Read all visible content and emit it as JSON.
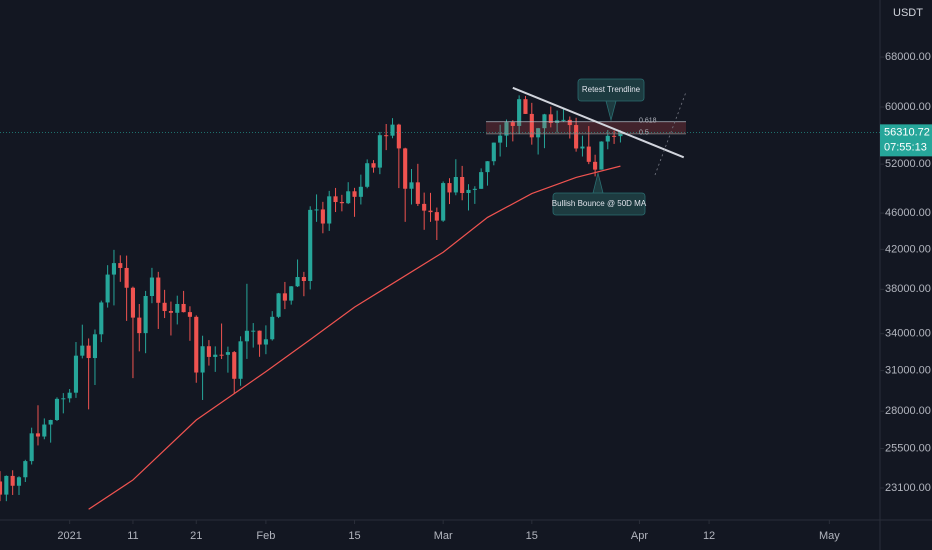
{
  "chart_data": {
    "type": "candlestick",
    "currency": "USDT",
    "countdown": "07:55:13",
    "up_color": "#26a69a",
    "down_color": "#ef5350",
    "log_scale": true,
    "grid": false,
    "x": [
      "2020-12-21",
      "2020-12-22",
      "2020-12-23",
      "2020-12-24",
      "2020-12-25",
      "2020-12-26",
      "2020-12-27",
      "2020-12-28",
      "2020-12-29",
      "2020-12-30",
      "2020-12-31",
      "2021-01-01",
      "2021-01-02",
      "2021-01-03",
      "2021-01-04",
      "2021-01-05",
      "2021-01-06",
      "2021-01-07",
      "2021-01-08",
      "2021-01-09",
      "2021-01-10",
      "2021-01-11",
      "2021-01-12",
      "2021-01-13",
      "2021-01-14",
      "2021-01-15",
      "2021-01-16",
      "2021-01-17",
      "2021-01-18",
      "2021-01-19",
      "2021-01-20",
      "2021-01-21",
      "2021-01-22",
      "2021-01-23",
      "2021-01-24",
      "2021-01-25",
      "2021-01-26",
      "2021-01-27",
      "2021-01-28",
      "2021-01-29",
      "2021-01-30",
      "2021-01-31",
      "2021-02-01",
      "2021-02-02",
      "2021-02-03",
      "2021-02-04",
      "2021-02-05",
      "2021-02-06",
      "2021-02-07",
      "2021-02-08",
      "2021-02-09",
      "2021-02-10",
      "2021-02-11",
      "2021-02-12",
      "2021-02-13",
      "2021-02-14",
      "2021-02-15",
      "2021-02-16",
      "2021-02-17",
      "2021-02-18",
      "2021-02-19",
      "2021-02-20",
      "2021-02-21",
      "2021-02-22",
      "2021-02-23",
      "2021-02-24",
      "2021-02-25",
      "2021-02-26",
      "2021-02-27",
      "2021-02-28",
      "2021-03-01",
      "2021-03-02",
      "2021-03-03",
      "2021-03-04",
      "2021-03-05",
      "2021-03-06",
      "2021-03-07",
      "2021-03-08",
      "2021-03-09",
      "2021-03-10",
      "2021-03-11",
      "2021-03-12",
      "2021-03-13",
      "2021-03-14",
      "2021-03-15",
      "2021-03-16",
      "2021-03-17",
      "2021-03-18",
      "2021-03-19",
      "2021-03-20",
      "2021-03-21",
      "2021-03-22",
      "2021-03-23",
      "2021-03-24",
      "2021-03-25",
      "2021-03-26",
      "2021-03-27",
      "2021-03-28",
      "2021-03-29"
    ],
    "open": [
      23480,
      22720,
      23810,
      23230,
      23730,
      24710,
      26490,
      26280,
      27080,
      27390,
      28880,
      28920,
      29330,
      32180,
      33000,
      31990,
      33950,
      36770,
      39430,
      40580,
      40090,
      38150,
      35400,
      34050,
      37370,
      39140,
      36740,
      35990,
      35830,
      36630,
      35890,
      35470,
      30850,
      32950,
      32080,
      32260,
      32250,
      32470,
      30370,
      33360,
      34250,
      34260,
      33090,
      33530,
      35470,
      37620,
      36940,
      38290,
      39190,
      38800,
      46370,
      46420,
      44810,
      47970,
      47290,
      47150,
      48580,
      47910,
      49130,
      52120,
      51550,
      55910,
      55840,
      57410,
      54090,
      48890,
      49680,
      47070,
      46280,
      46110,
      45140,
      49590,
      48440,
      50350,
      48370,
      48750,
      48880,
      50970,
      52380,
      54880,
      55850,
      57770,
      57220,
      61190,
      58970,
      55610,
      56900,
      58910,
      57650,
      58030,
      58100,
      57350,
      54080,
      54340,
      52300,
      51290,
      55030,
      55820,
      55780
    ],
    "high": [
      24100,
      23840,
      24150,
      23790,
      24790,
      26870,
      28420,
      27500,
      27410,
      28990,
      29300,
      29600,
      33300,
      34780,
      33600,
      34360,
      36940,
      40370,
      41950,
      41380,
      41350,
      38260,
      36630,
      37850,
      40100,
      39700,
      37950,
      36850,
      37400,
      37850,
      36420,
      35600,
      33830,
      33460,
      32940,
      34880,
      32920,
      32560,
      33780,
      38530,
      34920,
      34280,
      34720,
      35980,
      37660,
      38710,
      38310,
      40950,
      39700,
      46790,
      48200,
      47310,
      48630,
      48990,
      48150,
      49700,
      49000,
      50650,
      52620,
      52530,
      56370,
      57500,
      58350,
      57530,
      54180,
      51370,
      52040,
      48420,
      48390,
      46640,
      49790,
      50200,
      52640,
      51770,
      49450,
      49200,
      51450,
      52400,
      54900,
      57390,
      58150,
      58060,
      61780,
      61680,
      60630,
      56940,
      58980,
      60070,
      59470,
      59880,
      58590,
      58400,
      55840,
      57200,
      53240,
      55070,
      56640,
      56560,
      56600
    ],
    "low": [
      22350,
      22350,
      22700,
      22700,
      23450,
      24500,
      25700,
      26100,
      25880,
      27320,
      27850,
      28620,
      28950,
      31960,
      28130,
      29900,
      33290,
      36300,
      36500,
      38720,
      35110,
      30420,
      32530,
      32380,
      36700,
      34410,
      35360,
      33850,
      34800,
      35860,
      33400,
      30070,
      28800,
      31390,
      30900,
      31910,
      30840,
      29240,
      29840,
      31920,
      32840,
      32090,
      32300,
      33420,
      35360,
      36160,
      36570,
      38220,
      37350,
      37990,
      45000,
      43730,
      43990,
      46120,
      46200,
      47050,
      45570,
      47000,
      48950,
      50900,
      50710,
      53860,
      55480,
      48970,
      45000,
      47000,
      46820,
      44110,
      45000,
      43000,
      45000,
      47050,
      48100,
      47500,
      46300,
      47070,
      48880,
      49270,
      51850,
      53000,
      54270,
      55050,
      56080,
      58960,
      54600,
      53270,
      54120,
      57020,
      56270,
      57820,
      55450,
      53650,
      53000,
      52000,
      50430,
      51290,
      53970,
      54700,
      54900
    ],
    "close": [
      22720,
      23810,
      23230,
      23730,
      24710,
      26490,
      26280,
      27080,
      27390,
      28880,
      28920,
      29330,
      32180,
      33000,
      31990,
      33950,
      36770,
      39430,
      40580,
      40090,
      38150,
      35400,
      34050,
      37370,
      39140,
      36740,
      35990,
      35830,
      36630,
      35890,
      35470,
      30850,
      32950,
      32080,
      32260,
      32250,
      32470,
      30370,
      33360,
      34250,
      34260,
      33090,
      33530,
      35470,
      37620,
      36940,
      38290,
      39190,
      38800,
      46370,
      46420,
      44810,
      47970,
      47290,
      47150,
      48580,
      47910,
      49130,
      52120,
      51550,
      55910,
      55840,
      57410,
      54090,
      48890,
      49680,
      47070,
      46280,
      46110,
      45140,
      49590,
      48440,
      50350,
      48370,
      48750,
      48880,
      50970,
      52380,
      54880,
      55850,
      57770,
      57220,
      61190,
      58970,
      55610,
      56900,
      58910,
      57650,
      58030,
      58100,
      57350,
      54080,
      54340,
      52300,
      51290,
      55030,
      55820,
      55780,
      56310.72
    ],
    "moving_average": {
      "color": "#ef5350",
      "x": [
        "2021-01-04",
        "2021-01-11",
        "2021-01-21",
        "2021-02-01",
        "2021-02-08",
        "2021-02-15",
        "2021-03-01",
        "2021-03-08",
        "2021-03-15",
        "2021-03-22",
        "2021-03-29"
      ],
      "values": [
        21900,
        23570,
        27390,
        30920,
        33500,
        36340,
        41700,
        45500,
        48300,
        50300,
        51740
      ]
    },
    "trendline": {
      "color": "#d1d4dc",
      "x": [
        "2021-03-12",
        "2021-04-08"
      ],
      "values": [
        62950,
        52900
      ]
    },
    "fib_levels": [
      {
        "value": 57830,
        "label": "0.618"
      },
      {
        "value": 56100,
        "label": "0.5"
      }
    ],
    "annotations": [
      "Retest Trendline",
      "Bullish Bounce @ 50D MA"
    ],
    "xlim": [
      "2020-12-21",
      "2021-05-09"
    ],
    "xticks": [
      {
        "value": "2021-01-01",
        "label": "2021"
      },
      {
        "value": "2021-01-11",
        "label": "11"
      },
      {
        "value": "2021-01-21",
        "label": "21"
      },
      {
        "value": "2021-02-01",
        "label": "Feb"
      },
      {
        "value": "2021-02-15",
        "label": "15"
      },
      {
        "value": "2021-03-01",
        "label": "Mar"
      },
      {
        "value": "2021-03-15",
        "label": "15"
      },
      {
        "value": "2021-04-01",
        "label": "Apr"
      },
      {
        "value": "2021-04-12",
        "label": "12"
      },
      {
        "value": "2021-05-01",
        "label": "May"
      }
    ],
    "ylim": [
      21320,
      78450
    ],
    "yticks": [
      {
        "value": 23100,
        "label": "23100.00"
      },
      {
        "value": 25500,
        "label": "25500.00"
      },
      {
        "value": 28000,
        "label": "28000.00"
      },
      {
        "value": 31000,
        "label": "31000.00"
      },
      {
        "value": 34000,
        "label": "34000.00"
      },
      {
        "value": 38000,
        "label": "38000.00"
      },
      {
        "value": 42000,
        "label": "42000.00"
      },
      {
        "value": 46000,
        "label": "46000.00"
      },
      {
        "value": 52000,
        "label": "52000.00"
      },
      {
        "value": 60000,
        "label": "60000.00"
      },
      {
        "value": 68000,
        "label": "68000.00"
      }
    ]
  }
}
